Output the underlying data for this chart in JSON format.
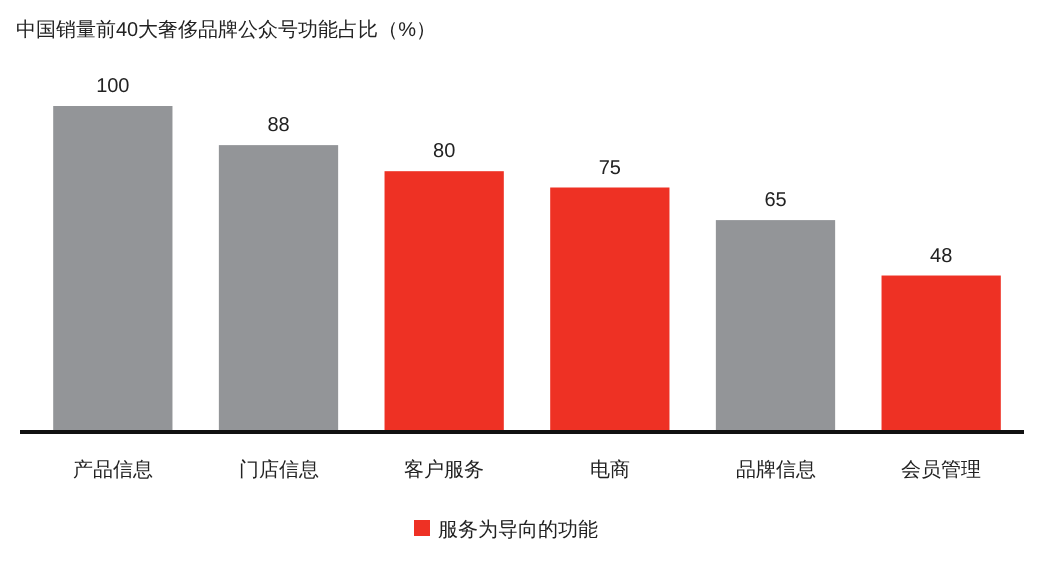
{
  "chart_data": {
    "type": "bar",
    "title": "中国销量前40大奢侈品牌公众号功能占比（%）",
    "categories": [
      "产品信息",
      "门店信息",
      "客户服务",
      "电商",
      "品牌信息",
      "会员管理"
    ],
    "series": [
      {
        "color": "#939598",
        "values": [
          100,
          88,
          null,
          null,
          65,
          null
        ]
      },
      {
        "name": "服务为导向的功能",
        "color": "#ee3124",
        "values": [
          null,
          null,
          80,
          75,
          null,
          48
        ]
      }
    ],
    "data_labels": true,
    "legend": "bottom"
  }
}
